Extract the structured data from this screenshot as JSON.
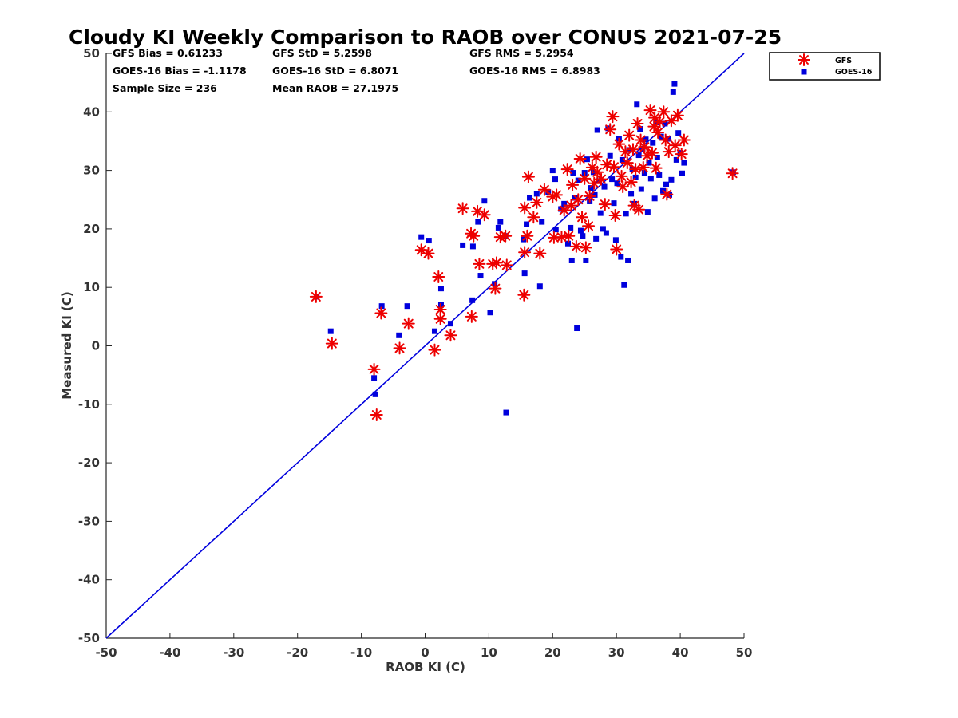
{
  "chart_data": {
    "type": "scatter",
    "title": "Cloudy KI Weekly Comparison to RAOB over CONUS 2021-07-25",
    "xlabel": "RAOB KI (C)",
    "ylabel": "Measured KI (C)",
    "xlim": [
      -50,
      50
    ],
    "ylim": [
      -50,
      50
    ],
    "xticks": [
      "-50",
      "-40",
      "-30",
      "-20",
      "-10",
      "0",
      "10",
      "20",
      "30",
      "40",
      "50"
    ],
    "yticks": [
      "-50",
      "-40",
      "-30",
      "-20",
      "-10",
      "0",
      "10",
      "20",
      "30",
      "40",
      "50"
    ],
    "grid": false,
    "legend_position": "outside-top-right",
    "reference_line": {
      "type": "one-to-one",
      "color": "#0000dd"
    },
    "stats": [
      [
        "GFS Bias = 0.61233",
        "GFS StD = 5.2598",
        "GFS RMS = 5.2954"
      ],
      [
        "GOES-16 Bias = -1.1178",
        "GOES-16 StD = 6.8071",
        "GOES-16 RMS = 6.8983"
      ],
      [
        "Sample Size = 236",
        "Mean RAOB = 27.1975",
        ""
      ]
    ],
    "series": [
      {
        "name": "GFS",
        "marker": "asterisk",
        "color": "#ee0000",
        "points": [
          [
            -17.1,
            8.4
          ],
          [
            -14.6,
            0.4
          ],
          [
            -8,
            -4
          ],
          [
            -7.6,
            -11.8
          ],
          [
            -6.9,
            5.6
          ],
          [
            -4,
            -0.4
          ],
          [
            -2.6,
            3.8
          ],
          [
            -0.6,
            16.4
          ],
          [
            0.5,
            15.8
          ],
          [
            1.5,
            -0.7
          ],
          [
            2.1,
            11.8
          ],
          [
            2.4,
            6.2
          ],
          [
            2.4,
            4.6
          ],
          [
            4,
            1.8
          ],
          [
            5.9,
            23.5
          ],
          [
            7.2,
            19.2
          ],
          [
            7.3,
            5
          ],
          [
            7.6,
            18.8
          ],
          [
            8.2,
            23
          ],
          [
            8.5,
            14
          ],
          [
            9.3,
            22.4
          ],
          [
            10.6,
            14
          ],
          [
            11.2,
            14.2
          ],
          [
            11,
            9.8
          ],
          [
            11.8,
            18.6
          ],
          [
            12.6,
            18.8
          ],
          [
            12.8,
            13.8
          ],
          [
            15.5,
            8.7
          ],
          [
            15.6,
            16
          ],
          [
            15.6,
            23.6
          ],
          [
            16,
            18.8
          ],
          [
            16.2,
            28.9
          ],
          [
            17,
            22
          ],
          [
            17.5,
            24.5
          ],
          [
            18,
            15.8
          ],
          [
            18.7,
            26.7
          ],
          [
            20,
            25.5
          ],
          [
            20.2,
            18.5
          ],
          [
            20.6,
            25.8
          ],
          [
            21.4,
            18.6
          ],
          [
            21.8,
            23.2
          ],
          [
            22.3,
            30.2
          ],
          [
            22.5,
            18.8
          ],
          [
            22.9,
            24
          ],
          [
            23.1,
            27.5
          ],
          [
            23.7,
            17
          ],
          [
            24,
            25
          ],
          [
            24.3,
            32
          ],
          [
            24.6,
            22
          ],
          [
            25,
            28.6
          ],
          [
            25.2,
            16.8
          ],
          [
            25.6,
            20.5
          ],
          [
            25.8,
            25.6
          ],
          [
            26.2,
            30.5
          ],
          [
            26.5,
            27.8
          ],
          [
            26.8,
            32.3
          ],
          [
            27,
            29.7
          ],
          [
            27.6,
            28.5
          ],
          [
            28.2,
            24.2
          ],
          [
            28.5,
            31
          ],
          [
            29,
            37
          ],
          [
            29.4,
            39.2
          ],
          [
            29.6,
            30.6
          ],
          [
            29.8,
            22.3
          ],
          [
            30,
            16.5
          ],
          [
            30.4,
            34.5
          ],
          [
            30.8,
            29
          ],
          [
            31,
            27.2
          ],
          [
            31.4,
            33.2
          ],
          [
            31.7,
            31.3
          ],
          [
            32,
            36
          ],
          [
            32.3,
            28
          ],
          [
            32.6,
            33.6
          ],
          [
            32.8,
            24
          ],
          [
            33,
            30.2
          ],
          [
            33.3,
            38
          ],
          [
            33.5,
            23.3
          ],
          [
            33.8,
            35.2
          ],
          [
            34.2,
            30.5
          ],
          [
            34.4,
            34
          ],
          [
            34.8,
            32.5
          ],
          [
            35.3,
            40.3
          ],
          [
            35.6,
            33
          ],
          [
            35.9,
            37.5
          ],
          [
            36,
            39
          ],
          [
            36.2,
            30.4
          ],
          [
            36.5,
            36.5
          ],
          [
            36.8,
            38.3
          ],
          [
            37.4,
            40
          ],
          [
            37.7,
            35.2
          ],
          [
            37.9,
            25.9
          ],
          [
            38.2,
            33.2
          ],
          [
            38.6,
            38.5
          ],
          [
            39.2,
            34.3
          ],
          [
            39.6,
            39.4
          ],
          [
            40.2,
            32.8
          ],
          [
            40.6,
            35.2
          ],
          [
            48.2,
            29.5
          ]
        ]
      },
      {
        "name": "GOES-16",
        "marker": "square",
        "color": "#0000dd",
        "points": [
          [
            -17,
            8.4
          ],
          [
            -14.8,
            2.5
          ],
          [
            -8,
            -5.5
          ],
          [
            -7.8,
            -8.3
          ],
          [
            -6.8,
            6.8
          ],
          [
            -4.1,
            1.8
          ],
          [
            -2.8,
            6.8
          ],
          [
            -0.6,
            18.6
          ],
          [
            0.6,
            18
          ],
          [
            1.5,
            2.5
          ],
          [
            2.5,
            9.8
          ],
          [
            2.5,
            7
          ],
          [
            4,
            3.8
          ],
          [
            5.9,
            17.2
          ],
          [
            7.4,
            7.8
          ],
          [
            7.5,
            17
          ],
          [
            8.3,
            21.2
          ],
          [
            8.7,
            12
          ],
          [
            9.3,
            24.8
          ],
          [
            10.2,
            5.7
          ],
          [
            10.9,
            10.6
          ],
          [
            11.5,
            20.2
          ],
          [
            11.8,
            21.2
          ],
          [
            12.6,
            18.8
          ],
          [
            12.7,
            -11.4
          ],
          [
            15.4,
            18.2
          ],
          [
            15.6,
            12.4
          ],
          [
            15.9,
            20.8
          ],
          [
            16.4,
            25.3
          ],
          [
            17.5,
            26
          ],
          [
            18,
            10.2
          ],
          [
            18.3,
            21.2
          ],
          [
            19.3,
            26.3
          ],
          [
            20,
            30
          ],
          [
            20.4,
            28.5
          ],
          [
            20.5,
            19.9
          ],
          [
            21.3,
            23.4
          ],
          [
            21.8,
            24.3
          ],
          [
            22.4,
            17.5
          ],
          [
            22.8,
            20.2
          ],
          [
            23,
            14.6
          ],
          [
            23.2,
            29.6
          ],
          [
            23.5,
            25.3
          ],
          [
            23.8,
            3
          ],
          [
            24,
            28.3
          ],
          [
            24.4,
            19.7
          ],
          [
            24.7,
            18.8
          ],
          [
            25,
            29.6
          ],
          [
            25.2,
            14.6
          ],
          [
            25.4,
            31.9
          ],
          [
            25.8,
            24.7
          ],
          [
            26,
            27
          ],
          [
            26.4,
            29.7
          ],
          [
            26.6,
            25.8
          ],
          [
            26.8,
            18.3
          ],
          [
            27,
            36.9
          ],
          [
            27.2,
            28.2
          ],
          [
            27.5,
            22.7
          ],
          [
            27.9,
            20
          ],
          [
            28.1,
            27.2
          ],
          [
            28.4,
            19.3
          ],
          [
            28.7,
            37.2
          ],
          [
            29,
            32.5
          ],
          [
            29.3,
            28.5
          ],
          [
            29.6,
            24.4
          ],
          [
            29.9,
            18.1
          ],
          [
            30.1,
            27.8
          ],
          [
            30.4,
            35.4
          ],
          [
            30.7,
            15.2
          ],
          [
            30.9,
            31.8
          ],
          [
            31.2,
            10.4
          ],
          [
            31.5,
            22.6
          ],
          [
            31.8,
            14.6
          ],
          [
            32,
            33.5
          ],
          [
            32.3,
            26
          ],
          [
            32.5,
            30.2
          ],
          [
            32.8,
            24.3
          ],
          [
            33,
            28.8
          ],
          [
            33.2,
            41.3
          ],
          [
            33.5,
            32.6
          ],
          [
            33.7,
            37.1
          ],
          [
            33.9,
            26.8
          ],
          [
            34.1,
            33.7
          ],
          [
            34.4,
            29.6
          ],
          [
            34.6,
            35.3
          ],
          [
            34.9,
            22.9
          ],
          [
            35.1,
            31.3
          ],
          [
            35.4,
            28.6
          ],
          [
            35.7,
            34.7
          ],
          [
            36,
            25.2
          ],
          [
            36.2,
            38.2
          ],
          [
            36.4,
            32.2
          ],
          [
            36.7,
            29.2
          ],
          [
            37,
            35.8
          ],
          [
            37.3,
            26.5
          ],
          [
            37.6,
            38
          ],
          [
            37.8,
            27.6
          ],
          [
            38.1,
            35.4
          ],
          [
            38.3,
            25.8
          ],
          [
            38.6,
            28.4
          ],
          [
            38.9,
            43.4
          ],
          [
            39.1,
            44.8
          ],
          [
            39.4,
            31.8
          ],
          [
            39.7,
            36.4
          ],
          [
            40,
            33
          ],
          [
            40.3,
            29.5
          ],
          [
            40.6,
            31.3
          ],
          [
            48.3,
            29.7
          ]
        ]
      }
    ]
  }
}
